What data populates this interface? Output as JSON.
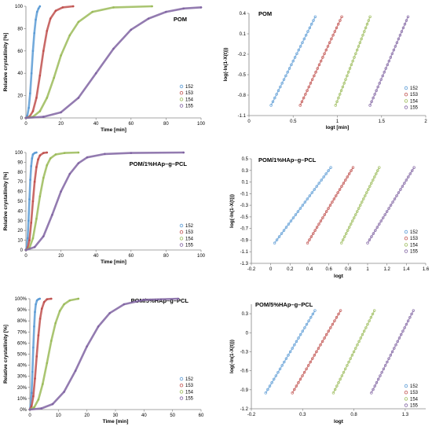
{
  "colors": {
    "s152": "#5b9bd5",
    "s153": "#c0504d",
    "s154": "#9bbb59",
    "s155": "#8064a2",
    "axis": "#868686",
    "text": "#000000"
  },
  "chart_data": [
    {
      "id": "a1",
      "type": "line",
      "title": "POM",
      "xlabel": "Time [min]",
      "ylabel": "Relative crystallinity [%]",
      "xlim": [
        0,
        100
      ],
      "ylim": [
        0,
        100
      ],
      "xticks": [
        0,
        20,
        40,
        60,
        80,
        100
      ],
      "yticks": [
        0,
        20,
        40,
        60,
        80,
        100
      ],
      "xtick_labels": [
        "0",
        "20",
        "40",
        "60",
        "80",
        "100"
      ],
      "ytick_labels": [
        "0",
        "20",
        "40",
        "60",
        "80",
        "100"
      ],
      "legend": "bottom-right",
      "series": [
        {
          "name": "152",
          "color": "#5b9bd5",
          "x": [
            0,
            0.8,
            1.6,
            2.4,
            3.2,
            4,
            4.8,
            5.6,
            6.4,
            7.2,
            8
          ],
          "y": [
            0,
            2,
            9,
            22,
            40,
            60,
            76,
            88,
            95,
            98,
            100
          ]
        },
        {
          "name": "153",
          "color": "#c0504d",
          "x": [
            0,
            2,
            4,
            6,
            8,
            10,
            12,
            14,
            17,
            21,
            27
          ],
          "y": [
            0,
            1,
            6,
            18,
            38,
            60,
            78,
            89,
            96,
            99,
            100
          ]
        },
        {
          "name": "154",
          "color": "#9bbb59",
          "x": [
            0,
            4,
            8,
            12,
            16,
            20,
            25,
            30,
            38,
            50,
            72
          ],
          "y": [
            0,
            1,
            6,
            18,
            36,
            56,
            74,
            86,
            95,
            99,
            100
          ]
        },
        {
          "name": "155",
          "color": "#8064a2",
          "x": [
            0,
            10,
            20,
            30,
            40,
            50,
            60,
            70,
            80,
            90,
            100
          ],
          "y": [
            0,
            1,
            5,
            18,
            40,
            62,
            79,
            89,
            95,
            98,
            99
          ]
        }
      ]
    },
    {
      "id": "b1",
      "type": "scatter",
      "title": "POM",
      "xlabel": "logt [min]",
      "ylabel": "log(-ln(1-X(t)))",
      "xlim": [
        0,
        2
      ],
      "ylim": [
        -1.1,
        0.4
      ],
      "xticks": [
        0,
        0.5,
        1,
        1.5,
        2
      ],
      "yticks": [
        -1.1,
        -0.8,
        -0.5,
        -0.2,
        0.1,
        0.4
      ],
      "xtick_labels": [
        "0",
        "0.5",
        "1",
        "1.5",
        "2"
      ],
      "ytick_labels": [
        "-1.1",
        "-0.8",
        "-0.5",
        "-0.2",
        "0.1",
        "0.4"
      ],
      "legend": "bottom-right",
      "series": [
        {
          "name": "152",
          "color": "#5b9bd5",
          "x": [
            0.25,
            0.75
          ],
          "y": [
            -0.95,
            0.35
          ]
        },
        {
          "name": "153",
          "color": "#c0504d",
          "x": [
            0.58,
            1.05
          ],
          "y": [
            -0.95,
            0.35
          ]
        },
        {
          "name": "154",
          "color": "#9bbb59",
          "x": [
            0.98,
            1.37
          ],
          "y": [
            -0.95,
            0.35
          ]
        },
        {
          "name": "155",
          "color": "#8064a2",
          "x": [
            1.37,
            1.8
          ],
          "y": [
            -0.95,
            0.35
          ]
        }
      ]
    },
    {
      "id": "a2",
      "type": "line",
      "title": "POM/1%HAp–g–PCL",
      "xlabel": "Time [min]",
      "ylabel": "Relative crystallinity [%]",
      "xlim": [
        0,
        100
      ],
      "ylim": [
        0,
        100
      ],
      "xticks": [
        0,
        20,
        40,
        60,
        80,
        100
      ],
      "yticks": [
        0,
        10,
        20,
        30,
        40,
        50,
        60,
        70,
        80,
        90,
        100
      ],
      "xtick_labels": [
        "0",
        "20",
        "40",
        "60",
        "80",
        "100"
      ],
      "ytick_labels": [
        "0",
        "10",
        "20",
        "30",
        "40",
        "50",
        "60",
        "70",
        "80",
        "90",
        "100"
      ],
      "legend": "bottom-right",
      "series": [
        {
          "name": "152",
          "color": "#5b9bd5",
          "x": [
            0,
            0.5,
            1,
            1.5,
            2,
            2.5,
            3,
            3.5,
            4,
            5,
            6
          ],
          "y": [
            0,
            3,
            12,
            30,
            52,
            72,
            86,
            94,
            98,
            99.5,
            100
          ]
        },
        {
          "name": "153",
          "color": "#c0504d",
          "x": [
            0,
            1,
            2,
            3,
            4,
            5,
            6,
            7,
            8,
            10,
            12
          ],
          "y": [
            0,
            2,
            10,
            28,
            50,
            70,
            85,
            93,
            97,
            99.5,
            100
          ]
        },
        {
          "name": "154",
          "color": "#9bbb59",
          "x": [
            0,
            2,
            4,
            6,
            8,
            10,
            12,
            14,
            17,
            22,
            30
          ],
          "y": [
            0,
            2,
            12,
            32,
            55,
            74,
            87,
            94,
            98,
            99.5,
            100
          ]
        },
        {
          "name": "155",
          "color": "#8064a2",
          "x": [
            0,
            5,
            10,
            15,
            20,
            25,
            30,
            35,
            45,
            60,
            90
          ],
          "y": [
            0,
            3,
            14,
            36,
            60,
            78,
            89,
            95,
            98.5,
            99.5,
            100
          ]
        }
      ]
    },
    {
      "id": "b2",
      "type": "scatter",
      "title": "POM/1%HAp–g–PCL",
      "xlabel": "logt",
      "ylabel": "log(-ln(1-X(t)))",
      "xlim": [
        -0.2,
        1.6
      ],
      "ylim": [
        -1.3,
        0.5
      ],
      "xticks": [
        -0.2,
        0,
        0.2,
        0.4,
        0.6,
        0.8,
        1,
        1.2,
        1.4,
        1.6
      ],
      "yticks": [
        -1.3,
        -1.1,
        -0.9,
        -0.7,
        -0.5,
        -0.3,
        -0.1,
        0.1,
        0.3,
        0.5
      ],
      "xtick_labels": [
        "-0.2",
        "0",
        "0.2",
        "0.4",
        "0.6",
        "0.8",
        "1",
        "1.2",
        "1.4",
        "1.6"
      ],
      "ytick_labels": [
        "-1.3",
        "-1.1",
        "-0.9",
        "-0.7",
        "-0.5",
        "-0.3",
        "-0.1",
        "0.1",
        "0.3",
        "0.5"
      ],
      "legend": "bottom-right",
      "series": [
        {
          "name": "152",
          "color": "#5b9bd5",
          "x": [
            0.04,
            0.62
          ],
          "y": [
            -0.95,
            0.35
          ]
        },
        {
          "name": "153",
          "color": "#c0504d",
          "x": [
            0.38,
            0.85
          ],
          "y": [
            -0.95,
            0.35
          ]
        },
        {
          "name": "154",
          "color": "#9bbb59",
          "x": [
            0.73,
            1.12
          ],
          "y": [
            -0.95,
            0.35
          ]
        },
        {
          "name": "155",
          "color": "#8064a2",
          "x": [
            1.0,
            1.48
          ],
          "y": [
            -0.95,
            0.35
          ]
        }
      ]
    },
    {
      "id": "a3",
      "type": "line",
      "title": "POM/5%HAp–g–PCL",
      "xlabel": "Time [min]",
      "ylabel": "Relative crystallinity [%]",
      "xlim": [
        0,
        60
      ],
      "ylim": [
        0,
        100
      ],
      "xticks": [
        0,
        10,
        20,
        30,
        40,
        50,
        60
      ],
      "yticks": [
        0,
        10,
        20,
        30,
        40,
        50,
        60,
        70,
        80,
        90,
        100
      ],
      "xtick_labels": [
        "0",
        "10",
        "20",
        "30",
        "40",
        "50",
        "60"
      ],
      "ytick_labels": [
        "0%",
        "10%",
        "20%",
        "30%",
        "40%",
        "50%",
        "60%",
        "70%",
        "80%",
        "90%",
        "100%"
      ],
      "legend": "bottom-right",
      "series": [
        {
          "name": "152",
          "color": "#5b9bd5",
          "x": [
            0,
            0.3,
            0.6,
            0.9,
            1.2,
            1.5,
            1.8,
            2.1,
            2.5,
            3,
            3.5
          ],
          "y": [
            0,
            4,
            15,
            34,
            56,
            75,
            88,
            95,
            98.5,
            99.5,
            100
          ]
        },
        {
          "name": "153",
          "color": "#c0504d",
          "x": [
            0,
            0.6,
            1.2,
            1.8,
            2.4,
            3,
            3.6,
            4.2,
            5,
            6,
            7.5
          ],
          "y": [
            0,
            3,
            12,
            28,
            48,
            67,
            82,
            91,
            97,
            99.5,
            100
          ]
        },
        {
          "name": "154",
          "color": "#9bbb59",
          "x": [
            0,
            1.5,
            3,
            4.5,
            6,
            7.5,
            9,
            10.5,
            12,
            14,
            17
          ],
          "y": [
            0,
            2,
            9,
            23,
            42,
            62,
            78,
            89,
            95,
            98.5,
            100
          ]
        },
        {
          "name": "155",
          "color": "#8064a2",
          "x": [
            0,
            4,
            8,
            12,
            16,
            20,
            24,
            28,
            33,
            40,
            52
          ],
          "y": [
            0,
            1,
            5,
            16,
            35,
            57,
            75,
            87,
            95,
            99,
            100
          ]
        }
      ]
    },
    {
      "id": "b3",
      "type": "scatter",
      "title": "POM/5%HAp–g–PCL",
      "xlabel": "logt",
      "ylabel": "log(-ln(1-X(t)))",
      "xlim": [
        -0.2,
        1.5
      ],
      "ylim": [
        -1.2,
        0.45
      ],
      "xticks": [
        -0.2,
        0.3,
        0.8,
        1.3
      ],
      "yticks": [
        -1.2,
        -0.9,
        -0.6,
        -0.3,
        0,
        0.3
      ],
      "xtick_labels": [
        "-0.2",
        "0.3",
        "0.8",
        "1.3"
      ],
      "ytick_labels": [
        "-1.2",
        "-0.9",
        "-0.6",
        "-0.3",
        "0",
        "0.3"
      ],
      "legend": "bottom-right",
      "series": [
        {
          "name": "152",
          "color": "#5b9bd5",
          "x": [
            -0.06,
            0.42
          ],
          "y": [
            -0.95,
            0.35
          ]
        },
        {
          "name": "153",
          "color": "#c0504d",
          "x": [
            0.2,
            0.67
          ],
          "y": [
            -0.95,
            0.35
          ]
        },
        {
          "name": "154",
          "color": "#9bbb59",
          "x": [
            0.6,
            1.0
          ],
          "y": [
            -0.95,
            0.35
          ]
        },
        {
          "name": "155",
          "color": "#8064a2",
          "x": [
            0.97,
            1.38
          ],
          "y": [
            -0.95,
            0.35
          ]
        }
      ]
    }
  ]
}
